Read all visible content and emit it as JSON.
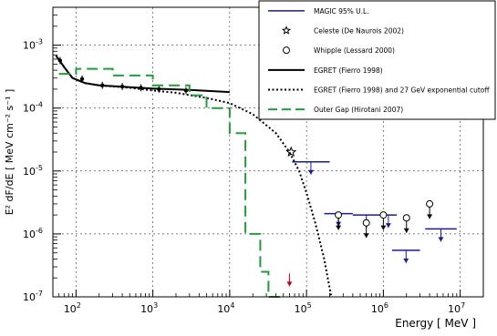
{
  "chart_data": {
    "type": "scatter",
    "xlabel": "Energy  [ MeV ]",
    "ylabel": "E² dF/dE  [ MeV cm⁻² s⁻¹ ]",
    "xscale": "log",
    "yscale": "log",
    "xlim": [
      50,
      20000000
    ],
    "ylim": [
      1e-07,
      0.004
    ],
    "grid": "dashed",
    "legend_position": "top-right",
    "x_ticks": [
      {
        "value": 100,
        "base": "10",
        "exp": "2"
      },
      {
        "value": 1000,
        "base": "10",
        "exp": "3"
      },
      {
        "value": 10000,
        "base": "10",
        "exp": "4"
      },
      {
        "value": 100000,
        "base": "10",
        "exp": "5"
      },
      {
        "value": 1000000,
        "base": "10",
        "exp": "6"
      },
      {
        "value": 10000000,
        "base": "10",
        "exp": "7"
      }
    ],
    "y_ticks": [
      {
        "value": 1e-07,
        "base": "10",
        "exp": "-7"
      },
      {
        "value": 1e-06,
        "base": "10",
        "exp": "-6"
      },
      {
        "value": 1e-05,
        "base": "10",
        "exp": "-5"
      },
      {
        "value": 0.0001,
        "base": "10",
        "exp": "-4"
      },
      {
        "value": 0.001,
        "base": "10",
        "exp": "-3"
      }
    ],
    "series": [
      {
        "name": "MAGIC 95% U.L.",
        "kind": "upper_limits",
        "color": "#1a1aa0",
        "points": [
          {
            "x_low": 65000,
            "x_high": 200000,
            "y": 1.4e-05
          },
          {
            "x_low": 170000,
            "x_high": 400000,
            "y": 2.1e-06
          },
          {
            "x_low": 400000,
            "x_high": 900000,
            "y": 2e-06
          },
          {
            "x_low": 900000,
            "x_high": 1500000,
            "y": 2e-06
          },
          {
            "x_low": 1300000,
            "x_high": 3000000,
            "y": 5.5e-07
          },
          {
            "x_low": 3500000,
            "x_high": 9000000,
            "y": 1.2e-06
          }
        ]
      },
      {
        "name": "Celeste (De Naurois 2002)",
        "kind": "star",
        "color": "#000000",
        "points": [
          {
            "x": 63000,
            "y": 2e-05
          }
        ]
      },
      {
        "name": "Whipple (Lessard 2000)",
        "kind": "open_circle_upper_limit",
        "color": "#000000",
        "points": [
          {
            "x": 260000,
            "y": 2e-06
          },
          {
            "x": 600000,
            "y": 1.5e-06
          },
          {
            "x": 1000000,
            "y": 2e-06
          },
          {
            "x": 2000000,
            "y": 1.8e-06
          },
          {
            "x": 4000000,
            "y": 3e-06
          }
        ]
      },
      {
        "name": "EGRET  (Fierro 1998)",
        "kind": "line",
        "style": "solid",
        "color": "#000000",
        "points": [
          {
            "x": 55,
            "y": 0.00068
          },
          {
            "x": 70,
            "y": 0.00045
          },
          {
            "x": 90,
            "y": 0.0003
          },
          {
            "x": 130,
            "y": 0.00025
          },
          {
            "x": 200,
            "y": 0.00023
          },
          {
            "x": 500,
            "y": 0.000215
          },
          {
            "x": 1000,
            "y": 0.000205
          },
          {
            "x": 3000,
            "y": 0.000195
          },
          {
            "x": 10000,
            "y": 0.00018
          }
        ]
      },
      {
        "name": "EGRET data",
        "kind": "data_points",
        "color": "#000000",
        "points": [
          {
            "x": 62,
            "y": 0.00057
          },
          {
            "x": 120,
            "y": 0.00029
          },
          {
            "x": 220,
            "y": 0.00023
          },
          {
            "x": 400,
            "y": 0.00022
          },
          {
            "x": 700,
            "y": 0.00021
          },
          {
            "x": 1200,
            "y": 0.0002
          },
          {
            "x": 2700,
            "y": 0.00019
          }
        ]
      },
      {
        "name": "EGRET (Fierro 1998) and 27 GeV exponential cutoff",
        "kind": "line",
        "style": "dotted",
        "color": "#000000",
        "points": [
          {
            "x": 55,
            "y": 0.00068
          },
          {
            "x": 70,
            "y": 0.00045
          },
          {
            "x": 90,
            "y": 0.0003
          },
          {
            "x": 130,
            "y": 0.00025
          },
          {
            "x": 200,
            "y": 0.00023
          },
          {
            "x": 500,
            "y": 0.00021
          },
          {
            "x": 1000,
            "y": 0.00019
          },
          {
            "x": 2000,
            "y": 0.000175
          },
          {
            "x": 5000,
            "y": 0.000145
          },
          {
            "x": 10000,
            "y": 0.00012
          },
          {
            "x": 20000,
            "y": 8e-05
          },
          {
            "x": 40000,
            "y": 4e-05
          },
          {
            "x": 60000,
            "y": 2e-05
          },
          {
            "x": 80000,
            "y": 1e-05
          },
          {
            "x": 100000,
            "y": 4.5e-06
          },
          {
            "x": 130000,
            "y": 1.5e-06
          },
          {
            "x": 170000,
            "y": 4e-07
          },
          {
            "x": 210000,
            "y": 1e-07
          }
        ]
      },
      {
        "name": "Outer Gap  (Hirotani 2007)",
        "kind": "line",
        "style": "dashed",
        "color": "#1f9e3a",
        "points": [
          {
            "x": 60,
            "y": 0.00035
          },
          {
            "x": 100,
            "y": 0.00035
          },
          {
            "x": 100,
            "y": 0.00042
          },
          {
            "x": 300,
            "y": 0.00042
          },
          {
            "x": 300,
            "y": 0.00033
          },
          {
            "x": 1000,
            "y": 0.00033
          },
          {
            "x": 1000,
            "y": 0.00023
          },
          {
            "x": 3000,
            "y": 0.00023
          },
          {
            "x": 3000,
            "y": 0.00016
          },
          {
            "x": 5000,
            "y": 0.00016
          },
          {
            "x": 5000,
            "y": 0.0001
          },
          {
            "x": 10000,
            "y": 0.0001
          },
          {
            "x": 10000,
            "y": 4e-05
          },
          {
            "x": 16000,
            "y": 4e-05
          },
          {
            "x": 16000,
            "y": 1e-06
          },
          {
            "x": 25000,
            "y": 1e-06
          },
          {
            "x": 25000,
            "y": 2.5e-07
          },
          {
            "x": 32000,
            "y": 2.5e-07
          },
          {
            "x": 32000,
            "y": 1e-07
          },
          {
            "x": 50000,
            "y": 1e-07
          }
        ]
      },
      {
        "name": "marker",
        "kind": "red_arrow",
        "color": "#cc0000",
        "points": [
          {
            "x": 60000,
            "y": 1.8e-07
          }
        ]
      }
    ]
  }
}
